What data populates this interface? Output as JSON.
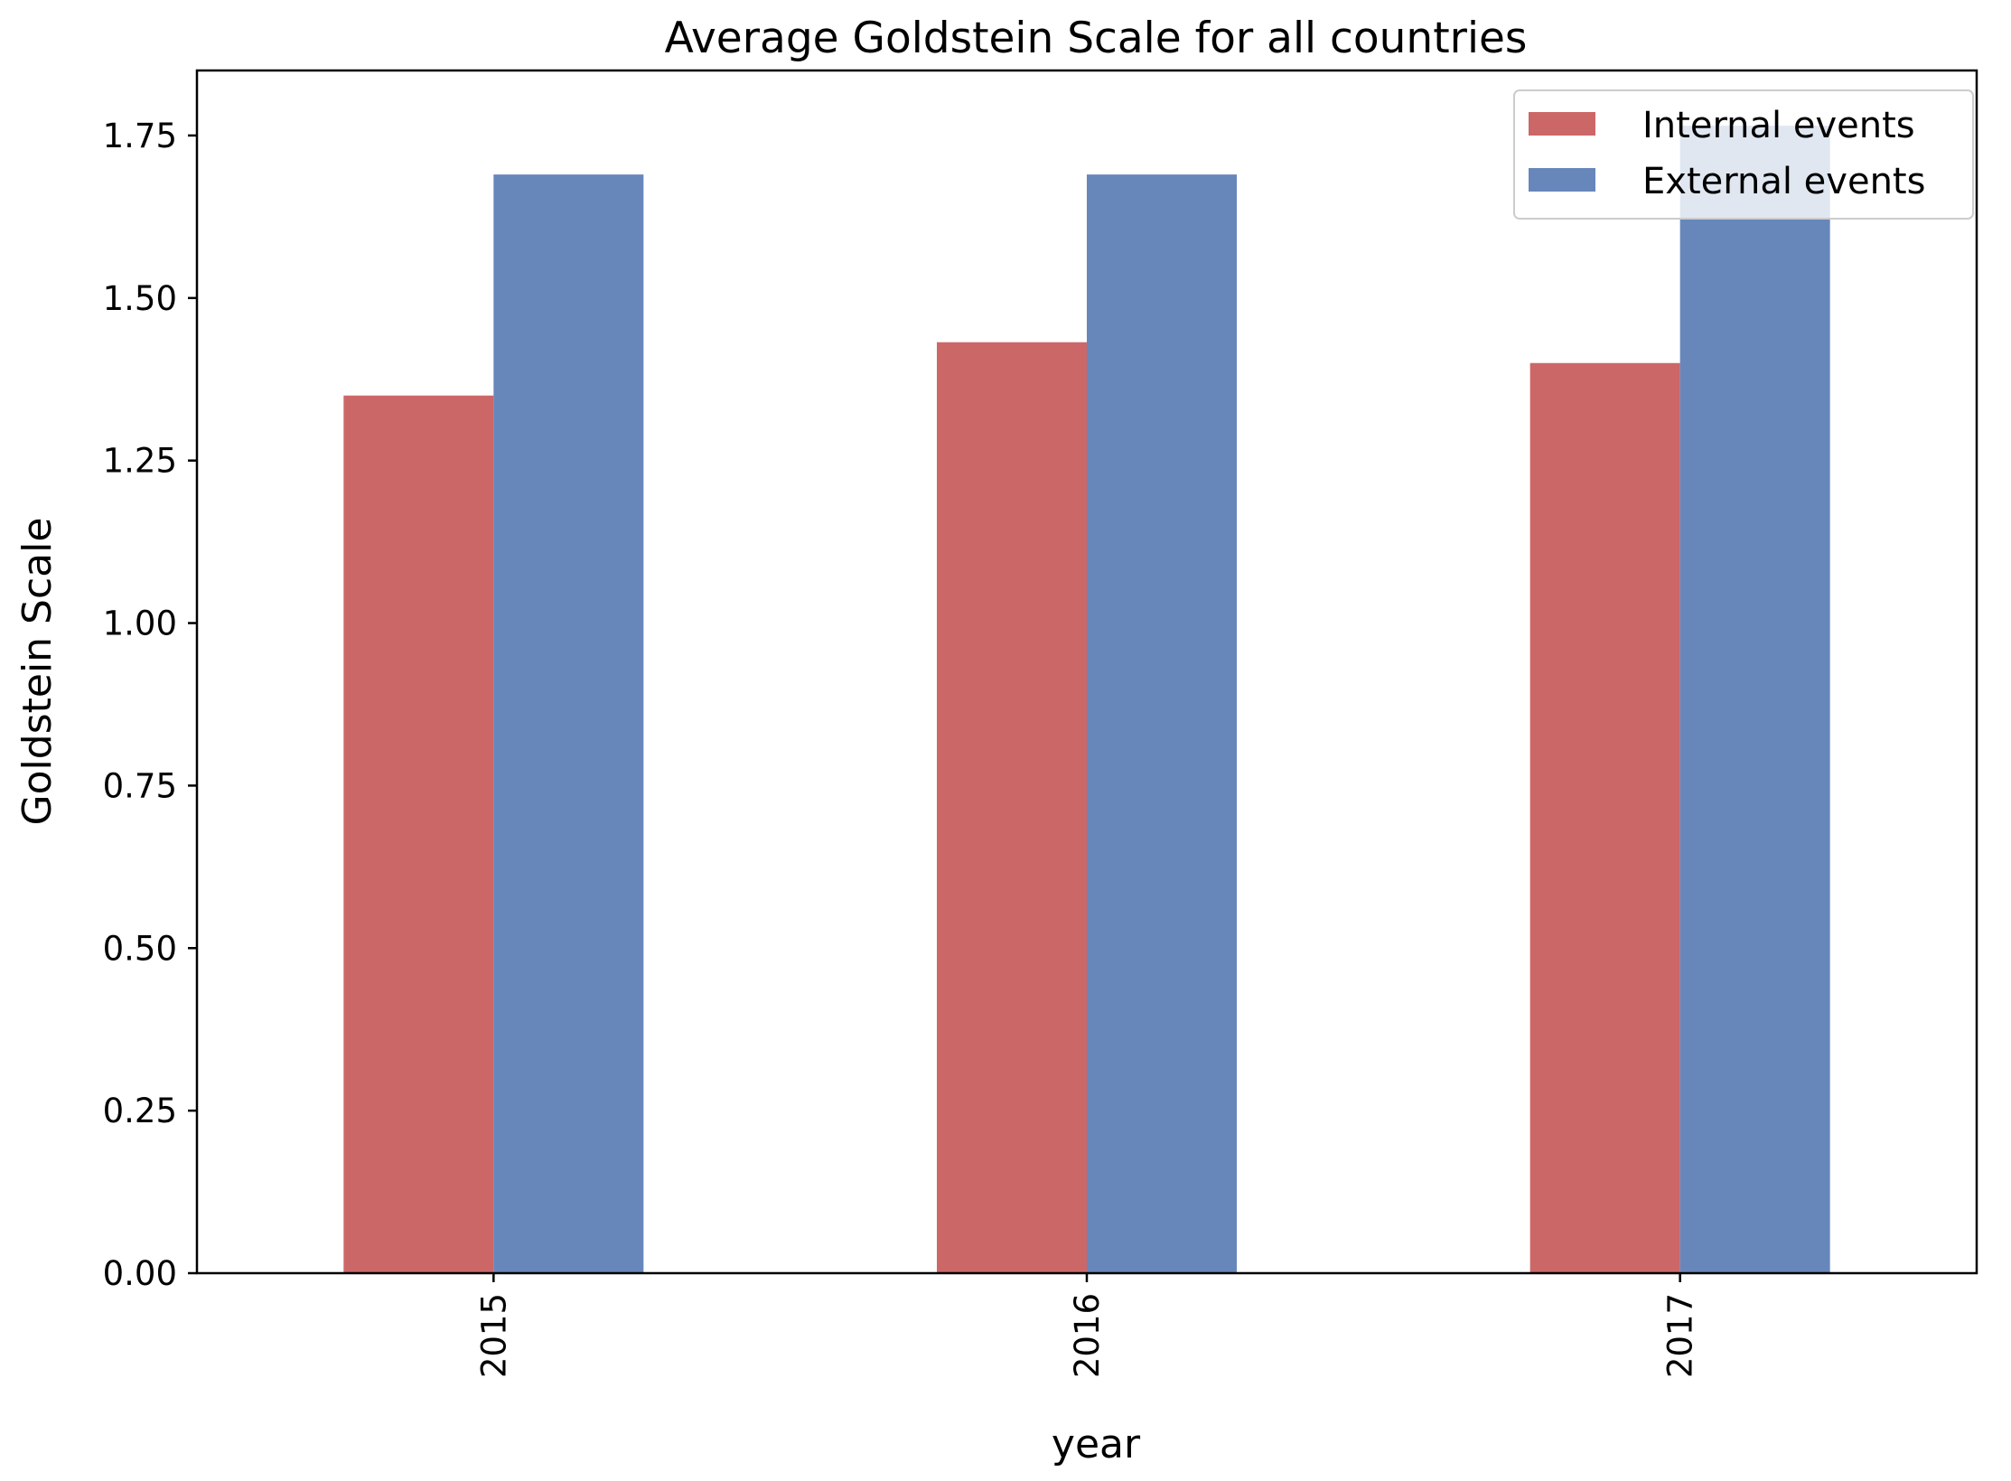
{
  "chart_data": {
    "type": "bar",
    "title": "Average Goldstein Scale for all countries",
    "xlabel": "year",
    "ylabel": "Goldstein Scale",
    "categories": [
      "2015",
      "2016",
      "2017"
    ],
    "series": [
      {
        "name": "Internal events",
        "color": "#cc6768",
        "values": [
          1.35,
          1.432,
          1.4
        ]
      },
      {
        "name": "External events",
        "color": "#6787bb",
        "values": [
          1.69,
          1.69,
          1.765
        ]
      }
    ],
    "ylim": [
      0,
      1.85
    ],
    "yticks": [
      "0.00",
      "0.25",
      "0.50",
      "0.75",
      "1.00",
      "1.25",
      "1.50",
      "1.75"
    ],
    "xtick_rotation": "vertical",
    "grid": false,
    "legend_position": "top-right"
  }
}
